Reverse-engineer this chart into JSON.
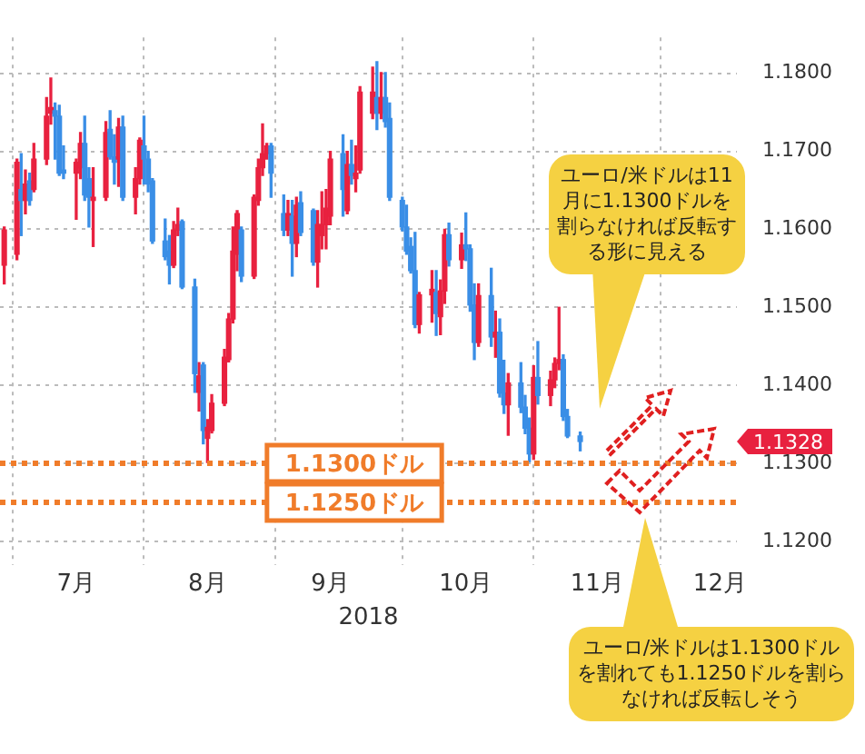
{
  "chart_data": {
    "type": "candlestick",
    "xlabel": "2018",
    "x": [
      "2018-06-29",
      "2018-07-02",
      "2018-07-03",
      "2018-07-04",
      "2018-07-05",
      "2018-07-06",
      "2018-07-09",
      "2018-07-10",
      "2018-07-11",
      "2018-07-12",
      "2018-07-13",
      "2018-07-16",
      "2018-07-17",
      "2018-07-18",
      "2018-07-19",
      "2018-07-20",
      "2018-07-23",
      "2018-07-24",
      "2018-07-25",
      "2018-07-26",
      "2018-07-27",
      "2018-07-30",
      "2018-07-31",
      "2018-08-01",
      "2018-08-02",
      "2018-08-03",
      "2018-08-06",
      "2018-08-07",
      "2018-08-08",
      "2018-08-09",
      "2018-08-10",
      "2018-08-13",
      "2018-08-14",
      "2018-08-15",
      "2018-08-16",
      "2018-08-17",
      "2018-08-20",
      "2018-08-21",
      "2018-08-22",
      "2018-08-23",
      "2018-08-24",
      "2018-08-27",
      "2018-08-28",
      "2018-08-29",
      "2018-08-30",
      "2018-08-31",
      "2018-09-03",
      "2018-09-04",
      "2018-09-05",
      "2018-09-06",
      "2018-09-07",
      "2018-09-10",
      "2018-09-11",
      "2018-09-12",
      "2018-09-13",
      "2018-09-14",
      "2018-09-17",
      "2018-09-18",
      "2018-09-19",
      "2018-09-20",
      "2018-09-21",
      "2018-09-24",
      "2018-09-25",
      "2018-09-26",
      "2018-09-27",
      "2018-09-28",
      "2018-10-01",
      "2018-10-02",
      "2018-10-03",
      "2018-10-04",
      "2018-10-05",
      "2018-10-08",
      "2018-10-09",
      "2018-10-10",
      "2018-10-11",
      "2018-10-12",
      "2018-10-15",
      "2018-10-16",
      "2018-10-17",
      "2018-10-18",
      "2018-10-19",
      "2018-10-22",
      "2018-10-23",
      "2018-10-24",
      "2018-10-25",
      "2018-10-26",
      "2018-10-29",
      "2018-10-30",
      "2018-10-31",
      "2018-11-01",
      "2018-11-02",
      "2018-11-05",
      "2018-11-06",
      "2018-11-07",
      "2018-11-08",
      "2018-11-09",
      "2018-11-12"
    ],
    "ohlc": [
      [
        1.1554,
        1.1603,
        1.153,
        1.1599
      ],
      [
        1.1568,
        1.169,
        1.1561,
        1.1686
      ],
      [
        1.1651,
        1.1697,
        1.1592,
        1.1637
      ],
      [
        1.1637,
        1.1676,
        1.162,
        1.1658
      ],
      [
        1.1662,
        1.1672,
        1.1631,
        1.1637
      ],
      [
        1.1651,
        1.171,
        1.1648,
        1.169
      ],
      [
        1.169,
        1.1769,
        1.1683,
        1.1745
      ],
      [
        1.1749,
        1.1794,
        1.1735,
        1.1756
      ],
      [
        1.1752,
        1.1762,
        1.169,
        1.1745
      ],
      [
        1.1745,
        1.1759,
        1.1669,
        1.1672
      ],
      [
        1.1676,
        1.1707,
        1.1665,
        1.1672
      ],
      [
        1.1672,
        1.169,
        1.1613,
        1.1686
      ],
      [
        1.1679,
        1.1724,
        1.1665,
        1.171
      ],
      [
        1.171,
        1.1745,
        1.1637,
        1.1644
      ],
      [
        1.1665,
        1.1679,
        1.1603,
        1.1641
      ],
      [
        1.1637,
        1.1679,
        1.1578,
        1.1641
      ],
      [
        1.1641,
        1.1738,
        1.1637,
        1.1724
      ],
      [
        1.1728,
        1.1752,
        1.169,
        1.1693
      ],
      [
        1.1693,
        1.1721,
        1.1658,
        1.1686
      ],
      [
        1.169,
        1.1742,
        1.1655,
        1.1731
      ],
      [
        1.1731,
        1.1745,
        1.1637,
        1.1641
      ],
      [
        1.1641,
        1.1679,
        1.162,
        1.1665
      ],
      [
        1.1665,
        1.1717,
        1.1658,
        1.1714
      ],
      [
        1.1707,
        1.1745,
        1.1658,
        1.169
      ],
      [
        1.169,
        1.17,
        1.1648,
        1.1658
      ],
      [
        1.1662,
        1.1665,
        1.1582,
        1.1585
      ],
      [
        1.1585,
        1.1613,
        1.1561,
        1.1565
      ],
      [
        1.1572,
        1.1592,
        1.153,
        1.1554
      ],
      [
        1.1554,
        1.161,
        1.1551,
        1.1599
      ],
      [
        1.1599,
        1.1627,
        1.1592,
        1.1606
      ],
      [
        1.161,
        1.1612,
        1.1524,
        1.1526
      ],
      [
        1.1526,
        1.1536,
        1.1391,
        1.1415
      ],
      [
        1.1391,
        1.1429,
        1.1367,
        1.1412
      ],
      [
        1.1426,
        1.1429,
        1.1325,
        1.1342
      ],
      [
        1.1332,
        1.1356,
        1.1301,
        1.1346
      ],
      [
        1.1342,
        1.1388,
        1.1339,
        1.1377
      ],
      [
        1.1377,
        1.1446,
        1.1374,
        1.1436
      ],
      [
        1.1433,
        1.1492,
        1.143,
        1.1485
      ],
      [
        1.1485,
        1.1603,
        1.148,
        1.1572
      ],
      [
        1.1568,
        1.1624,
        1.1547,
        1.162
      ],
      [
        1.1599,
        1.1603,
        1.1533,
        1.154
      ],
      [
        1.154,
        1.1644,
        1.1537,
        1.1641
      ],
      [
        1.1637,
        1.169,
        1.1631,
        1.1679
      ],
      [
        1.1679,
        1.1735,
        1.1669,
        1.1697
      ],
      [
        1.1697,
        1.171,
        1.169,
        1.1707
      ],
      [
        1.1707,
        1.171,
        1.1641,
        1.1672
      ],
      [
        1.162,
        1.1644,
        1.1592,
        1.1599
      ],
      [
        1.1599,
        1.1637,
        1.1592,
        1.162
      ],
      [
        1.1617,
        1.1637,
        1.154,
        1.1582
      ],
      [
        1.1582,
        1.1641,
        1.1565,
        1.1631
      ],
      [
        1.1634,
        1.1648,
        1.1592,
        1.1596
      ],
      [
        1.1624,
        1.1626,
        1.1554,
        1.1558
      ],
      [
        1.1558,
        1.1624,
        1.1526,
        1.1606
      ],
      [
        1.1592,
        1.1648,
        1.1575,
        1.1606
      ],
      [
        1.1606,
        1.1651,
        1.1575,
        1.1627
      ],
      [
        1.1617,
        1.17,
        1.1606,
        1.169
      ],
      [
        1.1697,
        1.1721,
        1.1617,
        1.1651
      ],
      [
        1.1624,
        1.17,
        1.162,
        1.1683
      ],
      [
        1.1683,
        1.1714,
        1.1658,
        1.1669
      ],
      [
        1.1665,
        1.1707,
        1.1648,
        1.1672
      ],
      [
        1.1676,
        1.1783,
        1.1672,
        1.1776
      ],
      [
        1.1749,
        1.1808,
        1.1742,
        1.1776
      ],
      [
        1.1769,
        1.1815,
        1.1728,
        1.1749
      ],
      [
        1.1749,
        1.1801,
        1.1742,
        1.1769
      ],
      [
        1.1769,
        1.1801,
        1.1731,
        1.1738
      ],
      [
        1.1742,
        1.1762,
        1.1637,
        1.1641
      ],
      [
        1.1637,
        1.1641,
        1.1598,
        1.1603
      ],
      [
        1.1603,
        1.1631,
        1.1568,
        1.1572
      ],
      [
        1.1578,
        1.1589,
        1.1544,
        1.1547
      ],
      [
        1.1547,
        1.1596,
        1.1474,
        1.1478
      ],
      [
        1.1478,
        1.1519,
        1.1467,
        1.1516
      ],
      [
        1.1516,
        1.1547,
        1.1481,
        1.1523
      ],
      [
        1.1519,
        1.1547,
        1.1464,
        1.1492
      ],
      [
        1.1488,
        1.1535,
        1.1465,
        1.1521
      ],
      [
        1.1521,
        1.16,
        1.1505,
        1.1593
      ],
      [
        1.1593,
        1.1608,
        1.1553,
        1.1561
      ],
      [
        1.1561,
        1.1595,
        1.155,
        1.158
      ],
      [
        1.158,
        1.1621,
        1.156,
        1.1575
      ],
      [
        1.1575,
        1.158,
        1.1495,
        1.1503
      ],
      [
        1.1503,
        1.153,
        1.1433,
        1.1455
      ],
      [
        1.1455,
        1.153,
        1.145,
        1.1515
      ],
      [
        1.1515,
        1.155,
        1.145,
        1.1462
      ],
      [
        1.1462,
        1.1495,
        1.1436,
        1.1468
      ],
      [
        1.1468,
        1.1485,
        1.1385,
        1.139
      ],
      [
        1.139,
        1.1432,
        1.1364,
        1.1375
      ],
      [
        1.1375,
        1.1415,
        1.1336,
        1.1403
      ],
      [
        1.1403,
        1.1429,
        1.1365,
        1.1372
      ],
      [
        1.1372,
        1.1387,
        1.1338,
        1.1345
      ],
      [
        1.1345,
        1.1358,
        1.1302,
        1.1312
      ],
      [
        1.1312,
        1.1425,
        1.1305,
        1.141
      ],
      [
        1.141,
        1.1456,
        1.1376,
        1.1387
      ],
      [
        1.1387,
        1.1418,
        1.1374,
        1.1407
      ],
      [
        1.1407,
        1.1435,
        1.1397,
        1.1428
      ],
      [
        1.1428,
        1.15,
        1.142,
        1.1433
      ],
      [
        1.1433,
        1.1439,
        1.1355,
        1.136
      ],
      [
        1.136,
        1.1369,
        1.1333,
        1.1335
      ],
      [
        1.1335,
        1.134,
        1.1316,
        1.1328
      ]
    ],
    "colors": [
      "#e8213f",
      "#e8213f",
      "#3a8ee6",
      "#e8213f",
      "#3a8ee6",
      "#e8213f",
      "#e8213f",
      "#e8213f",
      "#3a8ee6",
      "#3a8ee6",
      "#3a8ee6",
      "#e8213f",
      "#e8213f",
      "#3a8ee6",
      "#3a8ee6",
      "#e8213f",
      "#e8213f",
      "#3a8ee6",
      "#3a8ee6",
      "#e8213f",
      "#3a8ee6",
      "#e8213f",
      "#e8213f",
      "#3a8ee6",
      "#3a8ee6",
      "#3a8ee6",
      "#3a8ee6",
      "#3a8ee6",
      "#e8213f",
      "#e8213f",
      "#3a8ee6",
      "#3a8ee6",
      "#e8213f",
      "#3a8ee6",
      "#e8213f",
      "#e8213f",
      "#e8213f",
      "#e8213f",
      "#e8213f",
      "#e8213f",
      "#3a8ee6",
      "#e8213f",
      "#e8213f",
      "#e8213f",
      "#e8213f",
      "#3a8ee6",
      "#3a8ee6",
      "#e8213f",
      "#3a8ee6",
      "#e8213f",
      "#3a8ee6",
      "#3a8ee6",
      "#e8213f",
      "#e8213f",
      "#e8213f",
      "#e8213f",
      "#3a8ee6",
      "#e8213f",
      "#3a8ee6",
      "#e8213f",
      "#e8213f",
      "#e8213f",
      "#3a8ee6",
      "#e8213f",
      "#3a8ee6",
      "#3a8ee6",
      "#3a8ee6",
      "#3a8ee6",
      "#3a8ee6",
      "#3a8ee6",
      "#e8213f",
      "#e8213f",
      "#3a8ee6",
      "#e8213f",
      "#e8213f",
      "#3a8ee6",
      "#e8213f",
      "#3a8ee6",
      "#3a8ee6",
      "#3a8ee6",
      "#e8213f",
      "#3a8ee6",
      "#e8213f",
      "#3a8ee6",
      "#3a8ee6",
      "#e8213f",
      "#3a8ee6",
      "#3a8ee6",
      "#3a8ee6",
      "#e8213f",
      "#3a8ee6",
      "#e8213f",
      "#e8213f",
      "#e8213f",
      "#3a8ee6",
      "#3a8ee6",
      "#3a8ee6"
    ],
    "xlim": [
      "2018-06-28",
      "2018-12-19"
    ],
    "xticks": [
      {
        "value": "2018-07-01",
        "label": null
      },
      {
        "value": "2018-07-16",
        "label": "7月"
      },
      {
        "value": "2018-08-01",
        "label": null
      },
      {
        "value": "2018-08-16",
        "label": "8月"
      },
      {
        "value": "2018-09-01",
        "label": null
      },
      {
        "value": "2018-09-14",
        "label": "9月"
      },
      {
        "value": "2018-10-01",
        "label": null
      },
      {
        "value": "2018-10-16",
        "label": "10月"
      },
      {
        "value": "2018-11-01",
        "label": null
      },
      {
        "value": "2018-11-16",
        "label": "11月"
      },
      {
        "value": "2018-12-01",
        "label": null
      },
      {
        "value": "2018-12-15",
        "label": "12月"
      }
    ],
    "ylim": [
      1.117,
      1.1846
    ],
    "yticks": [
      {
        "value": 1.12,
        "label": "1.1200"
      },
      {
        "value": 1.13,
        "label": "1.1300"
      },
      {
        "value": 1.14,
        "label": "1.1400"
      },
      {
        "value": 1.15,
        "label": "1.1500"
      },
      {
        "value": 1.16,
        "label": "1.1600"
      },
      {
        "value": 1.17,
        "label": "1.1700"
      },
      {
        "value": 1.18,
        "label": "1.1800"
      }
    ],
    "grid": true,
    "ref_lines": [
      {
        "axis": "y",
        "value": 1.13,
        "label": "1.1300ドル",
        "color": "#f07c2a",
        "line_style": "dotted"
      },
      {
        "axis": "y",
        "value": 1.125,
        "label": "1.1250ドル",
        "color": "#f07c2a",
        "line_style": "dotted"
      }
    ],
    "annotations": [
      "1.1328",
      "ユーロ/米ドルは11月に1.1300ドルを割らなければ反転する形に見える",
      "ユーロ/米ドルは1.1300ドルを割れても1.1250ドルを割らなければ反転しそう"
    ]
  }
}
